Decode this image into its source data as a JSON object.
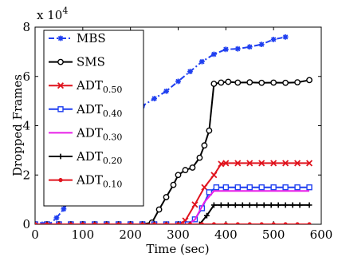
{
  "chart_data": {
    "type": "line",
    "xlabel": "Time (sec)",
    "ylabel": "Dropped Frames",
    "y_multiplier_label": "x 10",
    "y_multiplier_exp": "4",
    "xlim": [
      0,
      600
    ],
    "ylim": [
      0,
      80000
    ],
    "x_ticks": [
      0,
      100,
      200,
      300,
      400,
      500,
      600
    ],
    "y_ticks": [
      0,
      20000,
      40000,
      60000,
      80000
    ],
    "x_tick_labels": [
      "0",
      "100",
      "200",
      "300",
      "400",
      "500",
      "600"
    ],
    "y_tick_labels": [
      "0",
      "2",
      "4",
      "6",
      "8"
    ],
    "grid": false,
    "legend_position": "top-left",
    "series": [
      {
        "name": "MBS",
        "name_sub": "",
        "color": "#1f3ff0",
        "dash": "dashdot",
        "marker": "star",
        "points": [
          [
            0,
            0
          ],
          [
            15,
            0
          ],
          [
            30,
            0
          ],
          [
            45,
            2600
          ],
          [
            60,
            6200
          ],
          [
            75,
            10800
          ],
          [
            100,
            20000
          ],
          [
            125,
            31000
          ],
          [
            150,
            39000
          ],
          [
            175,
            42000
          ],
          [
            200,
            45000
          ],
          [
            225,
            48000
          ],
          [
            250,
            51000
          ],
          [
            275,
            54000
          ],
          [
            300,
            58000
          ],
          [
            325,
            62000
          ],
          [
            350,
            66000
          ],
          [
            375,
            69000
          ],
          [
            400,
            71000
          ],
          [
            425,
            71200
          ],
          [
            450,
            72000
          ],
          [
            475,
            73000
          ],
          [
            500,
            75000
          ],
          [
            525,
            76000
          ]
        ]
      },
      {
        "name": "SMS",
        "name_sub": "",
        "color": "#000000",
        "dash": "solid",
        "marker": "circle",
        "points": [
          [
            0,
            0
          ],
          [
            25,
            0
          ],
          [
            50,
            0
          ],
          [
            75,
            0
          ],
          [
            100,
            0
          ],
          [
            125,
            0
          ],
          [
            150,
            0
          ],
          [
            175,
            0
          ],
          [
            200,
            0
          ],
          [
            225,
            0
          ],
          [
            245,
            700
          ],
          [
            260,
            6000
          ],
          [
            275,
            11000
          ],
          [
            290,
            16000
          ],
          [
            300,
            20000
          ],
          [
            315,
            22000
          ],
          [
            330,
            23000
          ],
          [
            345,
            27000
          ],
          [
            355,
            32000
          ],
          [
            365,
            38000
          ],
          [
            375,
            57000
          ],
          [
            390,
            57500
          ],
          [
            405,
            57800
          ],
          [
            425,
            57500
          ],
          [
            450,
            57600
          ],
          [
            475,
            57400
          ],
          [
            500,
            57500
          ],
          [
            525,
            57400
          ],
          [
            550,
            57600
          ],
          [
            575,
            58500
          ]
        ]
      },
      {
        "name": "ADT",
        "name_sub": "0.50",
        "color": "#e0141e",
        "dash": "solid",
        "marker": "x",
        "points": [
          [
            0,
            0
          ],
          [
            25,
            0
          ],
          [
            50,
            0
          ],
          [
            75,
            0
          ],
          [
            100,
            0
          ],
          [
            125,
            0
          ],
          [
            150,
            0
          ],
          [
            175,
            0
          ],
          [
            200,
            0
          ],
          [
            225,
            0
          ],
          [
            250,
            0
          ],
          [
            275,
            0
          ],
          [
            300,
            0
          ],
          [
            315,
            1500
          ],
          [
            335,
            8000
          ],
          [
            355,
            15000
          ],
          [
            375,
            20000
          ],
          [
            390,
            24500
          ],
          [
            400,
            24800
          ],
          [
            425,
            24800
          ],
          [
            450,
            24800
          ],
          [
            475,
            24800
          ],
          [
            500,
            24800
          ],
          [
            525,
            24800
          ],
          [
            550,
            24800
          ],
          [
            575,
            24800
          ]
        ]
      },
      {
        "name": "ADT",
        "name_sub": "0.40",
        "color": "#1f3ff0",
        "dash": "solid",
        "marker": "square",
        "points": [
          [
            0,
            0
          ],
          [
            25,
            0
          ],
          [
            50,
            0
          ],
          [
            75,
            0
          ],
          [
            100,
            0
          ],
          [
            125,
            0
          ],
          [
            150,
            0
          ],
          [
            175,
            0
          ],
          [
            200,
            0
          ],
          [
            225,
            0
          ],
          [
            250,
            0
          ],
          [
            275,
            0
          ],
          [
            300,
            0
          ],
          [
            320,
            0
          ],
          [
            335,
            2000
          ],
          [
            350,
            6500
          ],
          [
            365,
            13000
          ],
          [
            380,
            15000
          ],
          [
            400,
            15000
          ],
          [
            425,
            15000
          ],
          [
            450,
            15000
          ],
          [
            475,
            15000
          ],
          [
            500,
            15000
          ],
          [
            525,
            15000
          ],
          [
            550,
            15000
          ],
          [
            575,
            15000
          ]
        ]
      },
      {
        "name": "ADT",
        "name_sub": "0.30",
        "color": "#e81ee8",
        "dash": "solid",
        "marker": "none",
        "points": [
          [
            0,
            0
          ],
          [
            320,
            0
          ],
          [
            335,
            1800
          ],
          [
            355,
            9000
          ],
          [
            375,
            13500
          ],
          [
            575,
            13500
          ]
        ]
      },
      {
        "name": "ADT",
        "name_sub": "0.20",
        "color": "#000000",
        "dash": "solid",
        "marker": "plus",
        "points": [
          [
            0,
            0
          ],
          [
            25,
            0
          ],
          [
            50,
            0
          ],
          [
            75,
            0
          ],
          [
            100,
            0
          ],
          [
            125,
            0
          ],
          [
            150,
            0
          ],
          [
            175,
            0
          ],
          [
            200,
            0
          ],
          [
            225,
            0
          ],
          [
            250,
            0
          ],
          [
            275,
            0
          ],
          [
            300,
            0
          ],
          [
            325,
            0
          ],
          [
            345,
            0
          ],
          [
            360,
            3500
          ],
          [
            375,
            7800
          ],
          [
            390,
            7800
          ],
          [
            405,
            7800
          ],
          [
            420,
            7800
          ],
          [
            435,
            7800
          ],
          [
            450,
            7800
          ],
          [
            465,
            7800
          ],
          [
            480,
            7800
          ],
          [
            495,
            7800
          ],
          [
            510,
            7800
          ],
          [
            525,
            7800
          ],
          [
            540,
            7800
          ],
          [
            555,
            7800
          ],
          [
            575,
            7800
          ]
        ]
      },
      {
        "name": "ADT",
        "name_sub": "0.10",
        "color": "#e0141e",
        "dash": "solid",
        "marker": "dot",
        "points": [
          [
            0,
            0
          ],
          [
            25,
            0
          ],
          [
            50,
            0
          ],
          [
            75,
            0
          ],
          [
            100,
            0
          ],
          [
            125,
            0
          ],
          [
            150,
            0
          ],
          [
            175,
            0
          ],
          [
            200,
            0
          ],
          [
            225,
            0
          ],
          [
            250,
            0
          ],
          [
            275,
            0
          ],
          [
            300,
            0
          ],
          [
            325,
            0
          ],
          [
            350,
            0
          ],
          [
            375,
            0
          ],
          [
            400,
            0
          ],
          [
            425,
            0
          ],
          [
            450,
            0
          ],
          [
            475,
            0
          ],
          [
            500,
            0
          ],
          [
            525,
            0
          ],
          [
            550,
            0
          ],
          [
            575,
            0
          ]
        ]
      }
    ]
  }
}
